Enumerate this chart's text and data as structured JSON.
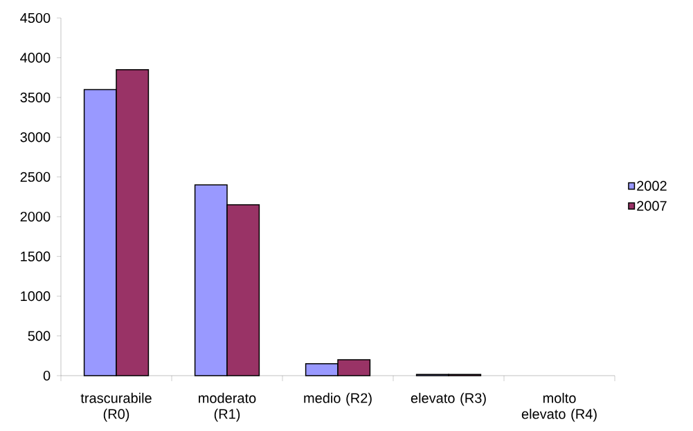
{
  "chart_data": {
    "type": "bar",
    "categories": [
      "trascurabile (R0)",
      "moderato (R1)",
      "medio   (R2)",
      "elevato  (R3)",
      "molto elevato (R4)"
    ],
    "series": [
      {
        "name": "2002",
        "color": "#9999ff",
        "values": [
          3600,
          2400,
          150,
          15,
          null
        ]
      },
      {
        "name": "2007",
        "color": "#993366",
        "values": [
          3850,
          2150,
          200,
          15,
          null
        ]
      }
    ],
    "ylim": [
      0,
      4500
    ],
    "yticks": [
      0,
      500,
      1000,
      1500,
      2000,
      2500,
      3000,
      3500,
      4000,
      4500
    ],
    "grid": false,
    "legend": "right"
  }
}
